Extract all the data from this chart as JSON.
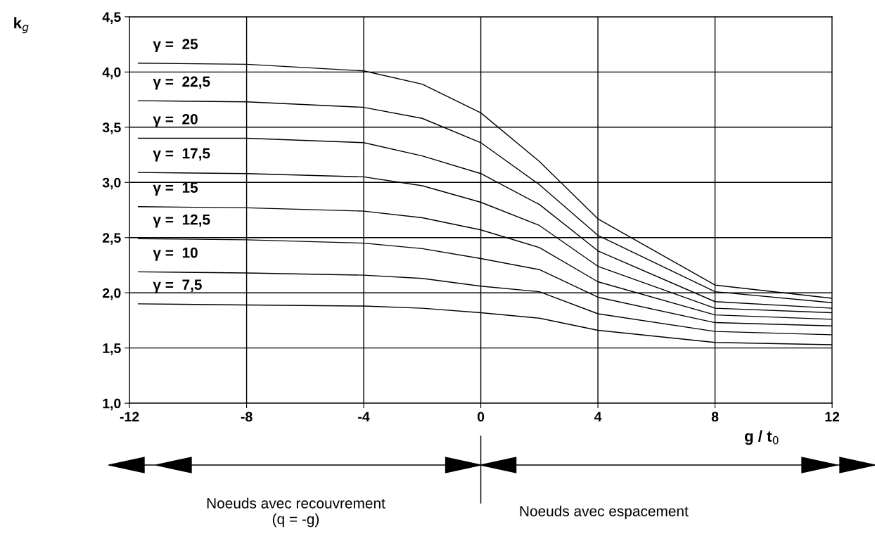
{
  "chart_data": {
    "type": "line",
    "xlabel": "g / t$_{0}$",
    "ylabel": "k$_{g}$",
    "x": [
      -11.7,
      -8,
      -4,
      -2,
      0,
      2,
      4,
      8,
      12
    ],
    "series": [
      {
        "name": "γ =  25",
        "color": "#000000",
        "values": [
          4.08,
          4.07,
          4.01,
          3.89,
          3.63,
          3.19,
          2.67,
          2.07,
          1.95
        ]
      },
      {
        "name": "γ =  22,5",
        "color": "#000000",
        "values": [
          3.74,
          3.73,
          3.68,
          3.58,
          3.36,
          2.98,
          2.52,
          2.01,
          1.91
        ]
      },
      {
        "name": "γ =  20",
        "color": "#000000",
        "values": [
          3.4,
          3.4,
          3.36,
          3.24,
          3.08,
          2.8,
          2.38,
          1.92,
          1.86
        ]
      },
      {
        "name": "γ =  17,5",
        "color": "#000000",
        "values": [
          3.09,
          3.08,
          3.05,
          2.97,
          2.82,
          2.61,
          2.24,
          1.86,
          1.82
        ]
      },
      {
        "name": "γ =  15",
        "color": "#000000",
        "values": [
          2.78,
          2.77,
          2.74,
          2.68,
          2.57,
          2.41,
          2.1,
          1.8,
          1.76
        ]
      },
      {
        "name": "γ =  12,5",
        "color": "#000000",
        "values": [
          2.49,
          2.48,
          2.45,
          2.4,
          2.31,
          2.21,
          1.96,
          1.73,
          1.7
        ]
      },
      {
        "name": "γ =  10",
        "color": "#000000",
        "values": [
          2.19,
          2.18,
          2.16,
          2.13,
          2.06,
          2.01,
          1.81,
          1.65,
          1.62
        ]
      },
      {
        "name": "γ =  7,5",
        "color": "#000000",
        "values": [
          1.9,
          1.89,
          1.88,
          1.86,
          1.82,
          1.77,
          1.66,
          1.55,
          1.53
        ]
      }
    ],
    "xlim": [
      -12,
      12
    ],
    "xticks": [
      -12,
      -8,
      -4,
      0,
      4,
      8,
      12
    ],
    "ylim": [
      1.0,
      4.5
    ],
    "yticks": [
      {
        "value": 1.0,
        "label": "1,0"
      },
      {
        "value": 1.5,
        "label": "1,5"
      },
      {
        "value": 2.0,
        "label": "2,0"
      },
      {
        "value": 2.5,
        "label": "2,5"
      },
      {
        "value": 3.0,
        "label": "3,0"
      },
      {
        "value": 3.5,
        "label": "3,5"
      },
      {
        "value": 4.0,
        "label": "4,0"
      },
      {
        "value": 4.5,
        "label": "4,5"
      }
    ],
    "grid": true,
    "legend": false,
    "marker": "none",
    "line_style": "solid",
    "annotations": [
      "Noeuds avec recouvrement\n(q = -g)",
      "Noeuds avec espacement"
    ]
  }
}
